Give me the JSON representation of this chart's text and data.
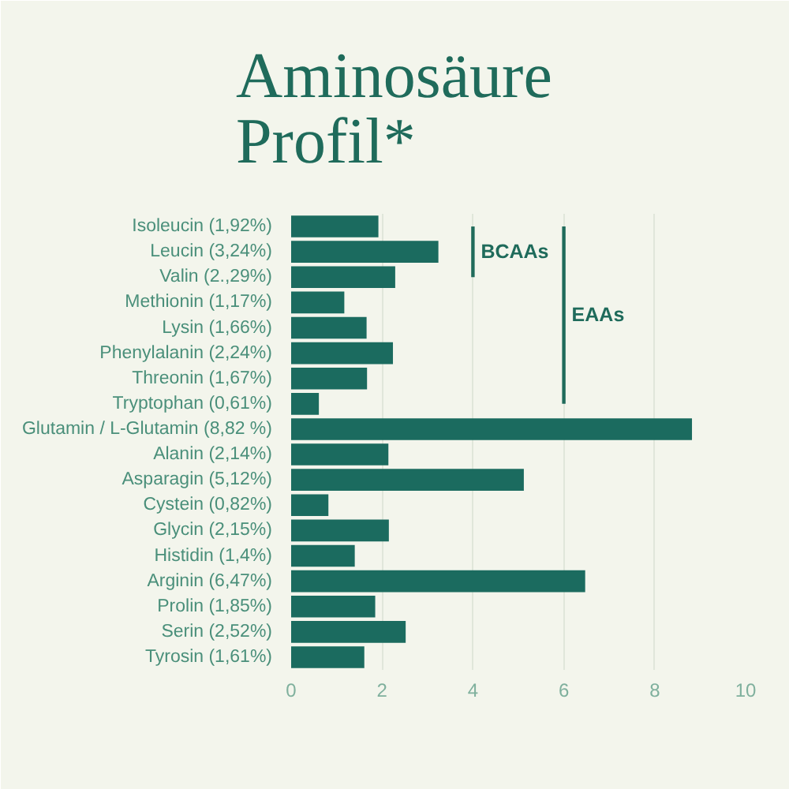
{
  "chart_data": {
    "type": "bar",
    "orientation": "horizontal",
    "title": "Aminosäure Profil*",
    "categories": [
      "Isoleucin (1,92%)",
      "Leucin (3,24%)",
      "Valin (2.,29%)",
      "Methionin (1,17%)",
      "Lysin (1,66%)",
      "Phenylalanin (2,24%)",
      "Threonin (1,67%)",
      "Tryptophan (0,61%)",
      "Glutamin / L-Glutamin (8,82 %)",
      "Alanin (2,14%)",
      "Asparagin (5,12%)",
      "Cystein (0,82%)",
      "Glycin (2,15%)",
      "Histidin (1,4%)",
      "Arginin (6,47%)",
      "Prolin (1,85%)",
      "Serin (2,52%)",
      "Tyrosin (1,61%)"
    ],
    "series": [
      {
        "color": "#1b6b5f",
        "values": [
          1.92,
          3.24,
          2.29,
          1.17,
          1.66,
          2.24,
          1.67,
          0.61,
          8.82,
          2.14,
          5.12,
          0.82,
          2.15,
          1.4,
          6.47,
          1.85,
          2.52,
          1.61
        ]
      },
      {
        "name": "BCAAs",
        "type": "line",
        "color": "#1f6b5b",
        "values": [
          4,
          4,
          4,
          null,
          null,
          null,
          null,
          null,
          null,
          null,
          null,
          null,
          null,
          null,
          null,
          null,
          null,
          null
        ]
      },
      {
        "name": "EAAs",
        "type": "line",
        "color": "#1f6b5b",
        "values": [
          6,
          6,
          6,
          6,
          6,
          6,
          6,
          6,
          null,
          null,
          null,
          null,
          null,
          null,
          null,
          null,
          null,
          null
        ]
      }
    ],
    "xlim": [
      0,
      10
    ],
    "xticks": [
      0,
      2,
      4,
      6,
      8,
      10
    ],
    "grid": "x"
  }
}
